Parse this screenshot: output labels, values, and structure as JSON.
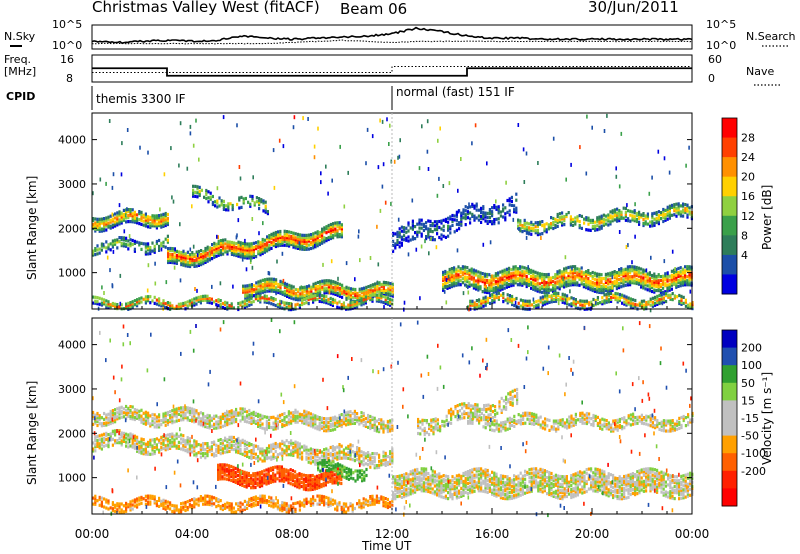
{
  "header": {
    "title": "Christmas Valley West (fitACF)",
    "beam": "Beam 06",
    "date": "30/Jun/2011"
  },
  "strip_labels": {
    "nsky": "N.Sky",
    "nsearch": "N.Search",
    "freq": "Freq.",
    "freq_unit": "[MHz]",
    "nave": "Nave",
    "cpid": "CPID"
  },
  "cpid_segments": [
    {
      "label": "themis 3300 IF",
      "start_hour": 0,
      "end_hour": 12
    },
    {
      "label": "normal (fast) 151 IF",
      "start_hour": 12,
      "end_hour": 24
    }
  ],
  "colors": {
    "power_scale": [
      "#0000e0",
      "#1c4fa8",
      "#2e7d5a",
      "#3aa04a",
      "#8fd040",
      "#ffd000",
      "#ff9000",
      "#ff4000",
      "#ff0000"
    ],
    "velocity_scale": [
      "#0000c0",
      "#2050b0",
      "#30a030",
      "#80d040",
      "#c0c0c0",
      "#c0c0c0",
      "#ffa000",
      "#ff6000",
      "#ff2000",
      "#ff0000"
    ],
    "ground_gray": "#c0c0c0"
  },
  "chart_data": [
    {
      "type": "line",
      "name": "nsky-nsearch-strip",
      "x_range": [
        0,
        24
      ],
      "y_ticks_left": [
        "10^5",
        "10^0"
      ],
      "y_ticks_right": [
        "10^5",
        "10^0"
      ],
      "x_hours": [
        0,
        1,
        2,
        3,
        4,
        5,
        6,
        7,
        8,
        9,
        10,
        11,
        12,
        13,
        14,
        15,
        16,
        17,
        18,
        19,
        20,
        21,
        22,
        23,
        24
      ],
      "nsky_level": [
        0.3,
        0.25,
        0.3,
        0.35,
        0.3,
        0.35,
        0.55,
        0.45,
        0.4,
        0.45,
        0.5,
        0.55,
        0.65,
        0.9,
        0.75,
        0.55,
        0.45,
        0.45,
        0.4,
        0.4,
        0.4,
        0.4,
        0.4,
        0.4,
        0.4
      ],
      "nsearch_level": [
        0.2,
        0.2,
        0.2,
        0.2,
        0.2,
        0.2,
        0.2,
        0.2,
        0.25,
        0.3,
        0.35,
        0.3,
        0.25,
        0.3,
        0.3,
        0.3,
        0.3,
        0.3,
        0.3,
        0.3,
        0.3,
        0.3,
        0.3,
        0.3,
        0.3
      ]
    },
    {
      "type": "line",
      "name": "freq-nave-strip",
      "x_range": [
        0,
        24
      ],
      "y_ticks_left": [
        "16",
        "8"
      ],
      "y_ticks_right": [
        "60",
        "0"
      ],
      "freq_steps": [
        {
          "start_hour": 0,
          "end_hour": 3,
          "mhz": 13.5
        },
        {
          "start_hour": 3,
          "end_hour": 12,
          "mhz": 10.5
        },
        {
          "start_hour": 12,
          "end_hour": 15,
          "mhz": 10.5
        },
        {
          "start_hour": 15,
          "end_hour": 24,
          "mhz": 13.5
        }
      ],
      "nave_steps": [
        {
          "start_hour": 0,
          "end_hour": 12,
          "value": 25
        },
        {
          "start_hour": 12,
          "end_hour": 24,
          "value": 45
        }
      ]
    },
    {
      "type": "heatmap",
      "name": "power",
      "ylabel": "Slant Range [km]",
      "y_ticks": [
        1000,
        2000,
        3000,
        4000
      ],
      "ylim": [
        180,
        4600
      ],
      "x_range": [
        0,
        24
      ],
      "colorbar_label": "Power [dB]",
      "colorbar_ticks": [
        "28",
        "24",
        "20",
        "16",
        "12",
        "8",
        "4"
      ],
      "bands": [
        {
          "x": [
            0,
            3
          ],
          "center": [
            2200,
            2300
          ],
          "width": 300,
          "peak": 0.85,
          "sparsity": 0.2
        },
        {
          "x": [
            0,
            3
          ],
          "center": [
            1600,
            1700
          ],
          "width": 250,
          "peak": 0.5,
          "sparsity": 0.5
        },
        {
          "x": [
            3,
            10
          ],
          "center": [
            1350,
            1950
          ],
          "width": 350,
          "peak": 0.95,
          "sparsity": 0.15
        },
        {
          "x": [
            6,
            12
          ],
          "center": [
            700,
            600
          ],
          "width": 300,
          "peak": 0.9,
          "sparsity": 0.15
        },
        {
          "x": [
            0,
            12
          ],
          "center": [
            350,
            400
          ],
          "width": 180,
          "peak": 0.8,
          "sparsity": 0.3
        },
        {
          "x": [
            4,
            7
          ],
          "center": [
            2800,
            2500
          ],
          "width": 250,
          "peak": 0.6,
          "sparsity": 0.5
        },
        {
          "x": [
            12,
            17
          ],
          "center": [
            1800,
            2600
          ],
          "width": 450,
          "peak": 0.2,
          "sparsity": 0.55
        },
        {
          "x": [
            14,
            24
          ],
          "center": [
            900,
            900
          ],
          "width": 450,
          "peak": 0.9,
          "sparsity": 0.2
        },
        {
          "x": [
            17,
            24
          ],
          "center": [
            2100,
            2400
          ],
          "width": 300,
          "peak": 0.7,
          "sparsity": 0.4
        },
        {
          "x": [
            15,
            24
          ],
          "center": [
            400,
            400
          ],
          "width": 200,
          "peak": 0.85,
          "sparsity": 0.3
        }
      ]
    },
    {
      "type": "heatmap",
      "name": "velocity",
      "ylabel": "Slant Range [km]",
      "y_ticks": [
        1000,
        2000,
        3000,
        4000
      ],
      "ylim": [
        180,
        4600
      ],
      "x_range": [
        0,
        24
      ],
      "xlabel": "Time UT",
      "x_ticks": [
        "00:00",
        "04:00",
        "08:00",
        "12:00",
        "16:00",
        "20:00",
        "00:00"
      ],
      "colorbar_label": "Velocity [m s⁻¹]",
      "colorbar_ticks": [
        "200",
        "100",
        "50",
        "15",
        "-15",
        "-50",
        "-100",
        "-200"
      ],
      "bands": [
        {
          "x": [
            0,
            12
          ],
          "center": [
            2450,
            2300
          ],
          "width": 300,
          "vel": 0,
          "sparsity": 0.3
        },
        {
          "x": [
            0,
            12
          ],
          "center": [
            1900,
            1500
          ],
          "width": 350,
          "vel": 0,
          "sparsity": 0.35
        },
        {
          "x": [
            5,
            10
          ],
          "center": [
            1100,
            1000
          ],
          "width": 350,
          "vel": -90,
          "sparsity": 0.2
        },
        {
          "x": [
            9,
            11
          ],
          "center": [
            1250,
            1150
          ],
          "width": 250,
          "vel": 60,
          "sparsity": 0.3
        },
        {
          "x": [
            0,
            12
          ],
          "center": [
            450,
            450
          ],
          "width": 200,
          "vel": -40,
          "sparsity": 0.35
        },
        {
          "x": [
            12,
            24
          ],
          "center": [
            900,
            900
          ],
          "width": 500,
          "vel": 0,
          "sparsity": 0.25
        },
        {
          "x": [
            15,
            24
          ],
          "center": [
            2300,
            2300
          ],
          "width": 250,
          "vel": 0,
          "sparsity": 0.35
        },
        {
          "x": [
            13,
            17
          ],
          "center": [
            2200,
            2800
          ],
          "width": 350,
          "vel": 0,
          "sparsity": 0.5
        }
      ]
    }
  ]
}
